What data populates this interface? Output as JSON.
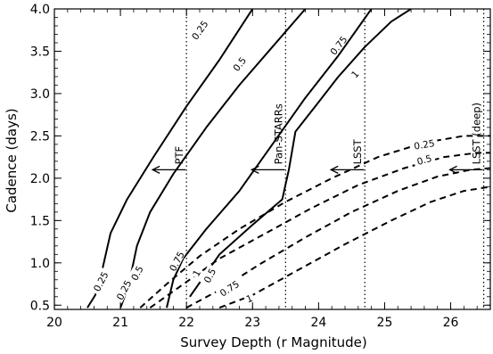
{
  "chart_data": {
    "type": "line",
    "xlabel": "Survey Depth (r Magnitude)",
    "ylabel": "Cadence (days)",
    "xlim": [
      20,
      26.6
    ],
    "ylim": [
      0.45,
      4.0
    ],
    "x_ticks": [
      20,
      21,
      22,
      23,
      24,
      25,
      26
    ],
    "x_tick_labels": [
      "20",
      "21",
      "22",
      "23",
      "24",
      "25",
      "26"
    ],
    "y_ticks": [
      0.5,
      1.0,
      1.5,
      2.0,
      2.5,
      3.0,
      3.5,
      4.0
    ],
    "y_tick_labels": [
      "0.5",
      "1.0",
      "1.5",
      "2.0",
      "2.5",
      "3.0",
      "3.5",
      "4.0"
    ],
    "grid": false,
    "series": [
      {
        "name": "0.25",
        "style": "solid",
        "points": [
          [
            20.5,
            0.47
          ],
          [
            20.62,
            0.62
          ],
          [
            20.72,
            0.9
          ],
          [
            20.85,
            1.35
          ],
          [
            21.1,
            1.75
          ],
          [
            21.5,
            2.25
          ],
          [
            22.0,
            2.85
          ],
          [
            22.5,
            3.4
          ],
          [
            23.0,
            4.0
          ]
        ],
        "label_position": [
          22.2,
          3.75
        ]
      },
      {
        "name": "0.5",
        "style": "solid",
        "points": [
          [
            21.0,
            0.47
          ],
          [
            21.12,
            0.72
          ],
          [
            21.25,
            1.2
          ],
          [
            21.45,
            1.6
          ],
          [
            21.8,
            2.05
          ],
          [
            22.3,
            2.6
          ],
          [
            22.8,
            3.1
          ],
          [
            23.3,
            3.55
          ],
          [
            23.8,
            4.0
          ]
        ],
        "label_position": [
          22.8,
          3.35
        ]
      },
      {
        "name": "0.75",
        "style": "solid",
        "points": [
          [
            21.7,
            0.47
          ],
          [
            21.8,
            0.8
          ],
          [
            21.95,
            1.05
          ],
          [
            22.3,
            1.4
          ],
          [
            22.8,
            1.85
          ],
          [
            23.3,
            2.4
          ],
          [
            23.8,
            2.95
          ],
          [
            24.3,
            3.45
          ],
          [
            24.8,
            4.0
          ]
        ],
        "label_position": [
          24.3,
          3.57
        ]
      },
      {
        "name": "1",
        "style": "solid",
        "points": [
          [
            22.05,
            0.6
          ],
          [
            22.5,
            1.1
          ],
          [
            23.0,
            1.45
          ],
          [
            23.45,
            1.75
          ],
          [
            23.55,
            2.1
          ],
          [
            23.65,
            2.55
          ],
          [
            23.95,
            2.85
          ],
          [
            24.3,
            3.2
          ],
          [
            24.7,
            3.55
          ],
          [
            25.1,
            3.85
          ],
          [
            25.4,
            4.0
          ]
        ],
        "label_position": [
          24.55,
          3.23
        ]
      },
      {
        "name": "0.25",
        "style": "dashed",
        "points": [
          [
            21.3,
            0.47
          ],
          [
            21.7,
            0.75
          ],
          [
            22.2,
            1.08
          ],
          [
            22.8,
            1.4
          ],
          [
            23.5,
            1.72
          ],
          [
            24.2,
            2.0
          ],
          [
            24.9,
            2.25
          ],
          [
            25.6,
            2.42
          ],
          [
            26.2,
            2.5
          ],
          [
            26.6,
            2.5
          ]
        ],
        "label_position": [
          25.6,
          2.4
        ]
      },
      {
        "name": "0.5",
        "style": "dashed",
        "points": [
          [
            21.45,
            0.47
          ],
          [
            21.9,
            0.72
          ],
          [
            22.5,
            1.05
          ],
          [
            23.2,
            1.35
          ],
          [
            23.9,
            1.65
          ],
          [
            24.6,
            1.92
          ],
          [
            25.3,
            2.12
          ],
          [
            25.9,
            2.25
          ],
          [
            26.4,
            2.3
          ],
          [
            26.6,
            2.3
          ]
        ],
        "label_position": [
          25.6,
          2.22
        ]
      },
      {
        "name": "0.75",
        "style": "dashed",
        "points": [
          [
            22.0,
            0.47
          ],
          [
            22.5,
            0.68
          ],
          [
            23.1,
            0.98
          ],
          [
            23.8,
            1.3
          ],
          [
            24.5,
            1.6
          ],
          [
            25.2,
            1.85
          ],
          [
            25.8,
            2.02
          ],
          [
            26.3,
            2.1
          ],
          [
            26.6,
            2.12
          ]
        ],
        "label_position": [
          22.65,
          0.7
        ]
      },
      {
        "name": "1",
        "style": "dashed",
        "points": [
          [
            22.5,
            0.47
          ],
          [
            23.0,
            0.62
          ],
          [
            23.7,
            0.92
          ],
          [
            24.4,
            1.22
          ],
          [
            25.1,
            1.5
          ],
          [
            25.7,
            1.72
          ],
          [
            26.2,
            1.85
          ],
          [
            26.6,
            1.9
          ]
        ],
        "label_position": [
          22.95,
          0.58
        ]
      }
    ],
    "extra_labels": [
      {
        "text": "0.25",
        "position": [
          20.7,
          0.78
        ]
      },
      {
        "text": "0.5",
        "position": [
          21.25,
          0.88
        ]
      },
      {
        "text": "0.25",
        "position": [
          21.05,
          0.68
        ]
      },
      {
        "text": "0.75",
        "position": [
          21.85,
          1.02
        ]
      },
      {
        "text": "1",
        "position": [
          22.15,
          0.88
        ]
      },
      {
        "text": "0.5",
        "position": [
          22.35,
          0.85
        ]
      }
    ],
    "surveys": [
      {
        "name": "PTF",
        "depth": 22.0,
        "arrow_y": 2.1
      },
      {
        "name": "Pan-STARRs",
        "depth": 23.5,
        "arrow_y": 2.1
      },
      {
        "name": "LSST",
        "depth": 24.7,
        "arrow_y": 2.1
      },
      {
        "name": "LSST (deep)",
        "depth": 26.5,
        "arrow_y": 2.1
      }
    ]
  }
}
